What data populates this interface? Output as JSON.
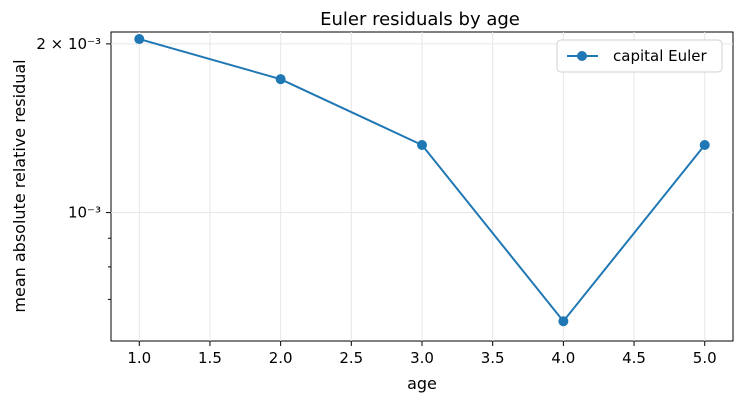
{
  "chart_data": {
    "type": "line",
    "title": "Euler residuals by age",
    "xlabel": "age",
    "ylabel": "mean absolute relative residual",
    "x": [
      1,
      2,
      3,
      4,
      5
    ],
    "series": [
      {
        "name": "capital Euler",
        "values": [
          0.00204,
          0.00173,
          0.00132,
          0.00064,
          0.00132
        ],
        "color": "#1f77b4"
      }
    ],
    "xlim": [
      0.8,
      5.2
    ],
    "ylim": [
      0.00059,
      0.0021
    ],
    "yscale": "log",
    "x_ticks": [
      "1.0",
      "1.5",
      "2.0",
      "2.5",
      "3.0",
      "3.5",
      "4.0",
      "4.5",
      "5.0"
    ],
    "x_tick_values": [
      1.0,
      1.5,
      2.0,
      2.5,
      3.0,
      3.5,
      4.0,
      4.5,
      5.0
    ],
    "y_ticks": [
      "2 × 10⁻³",
      "10⁻³"
    ],
    "y_tick_values": [
      0.002,
      0.001
    ],
    "y_minor_ticks": [
      0.0007,
      0.0008,
      0.0009
    ],
    "grid": true,
    "legend_position": "top-right"
  }
}
